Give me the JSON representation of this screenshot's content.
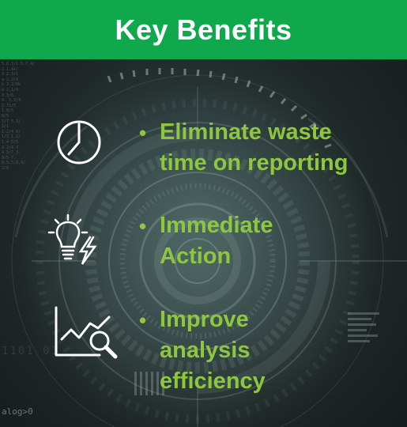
{
  "header": {
    "title": "Key Benefits"
  },
  "background": {
    "code_lines": [
      "5.6.3/1 5.7.4/",
      "2.1.4+/",
      "3.2.5/1",
      "a 2.2/4",
      "b 3.2/9b",
      "b 2.1/4",
      "3.3/8",
      "4. 3.3/4",
      "2.71/5",
      "1.8/5",
      "8/5",
      "5/7 5.3/",
      "2/1",
      "1.2/4 6/",
      "1/3 1.2/",
      "1.4 5/5",
      "0.2/4 3.",
      "4 5/7 3.",
      "0/5 7.",
      "0,5,5,8,9/",
      "2/8"
    ],
    "bits": "1101   01",
    "prompt": "alog>0"
  },
  "benefits": [
    {
      "icon": "clock-icon",
      "label": "Eliminate waste\ntime on reporting"
    },
    {
      "icon": "lightbulb-lightning-icon",
      "label": "Immediate\nAction"
    },
    {
      "icon": "chart-magnifier-icon",
      "label": "Improve\nanalysis\nefficiency"
    }
  ],
  "bullet": "•",
  "colors": {
    "header_bg": "#0fa84d",
    "header_text": "#ffffff",
    "accent_text": "#8dc63f",
    "icon_stroke": "#ffffff"
  }
}
